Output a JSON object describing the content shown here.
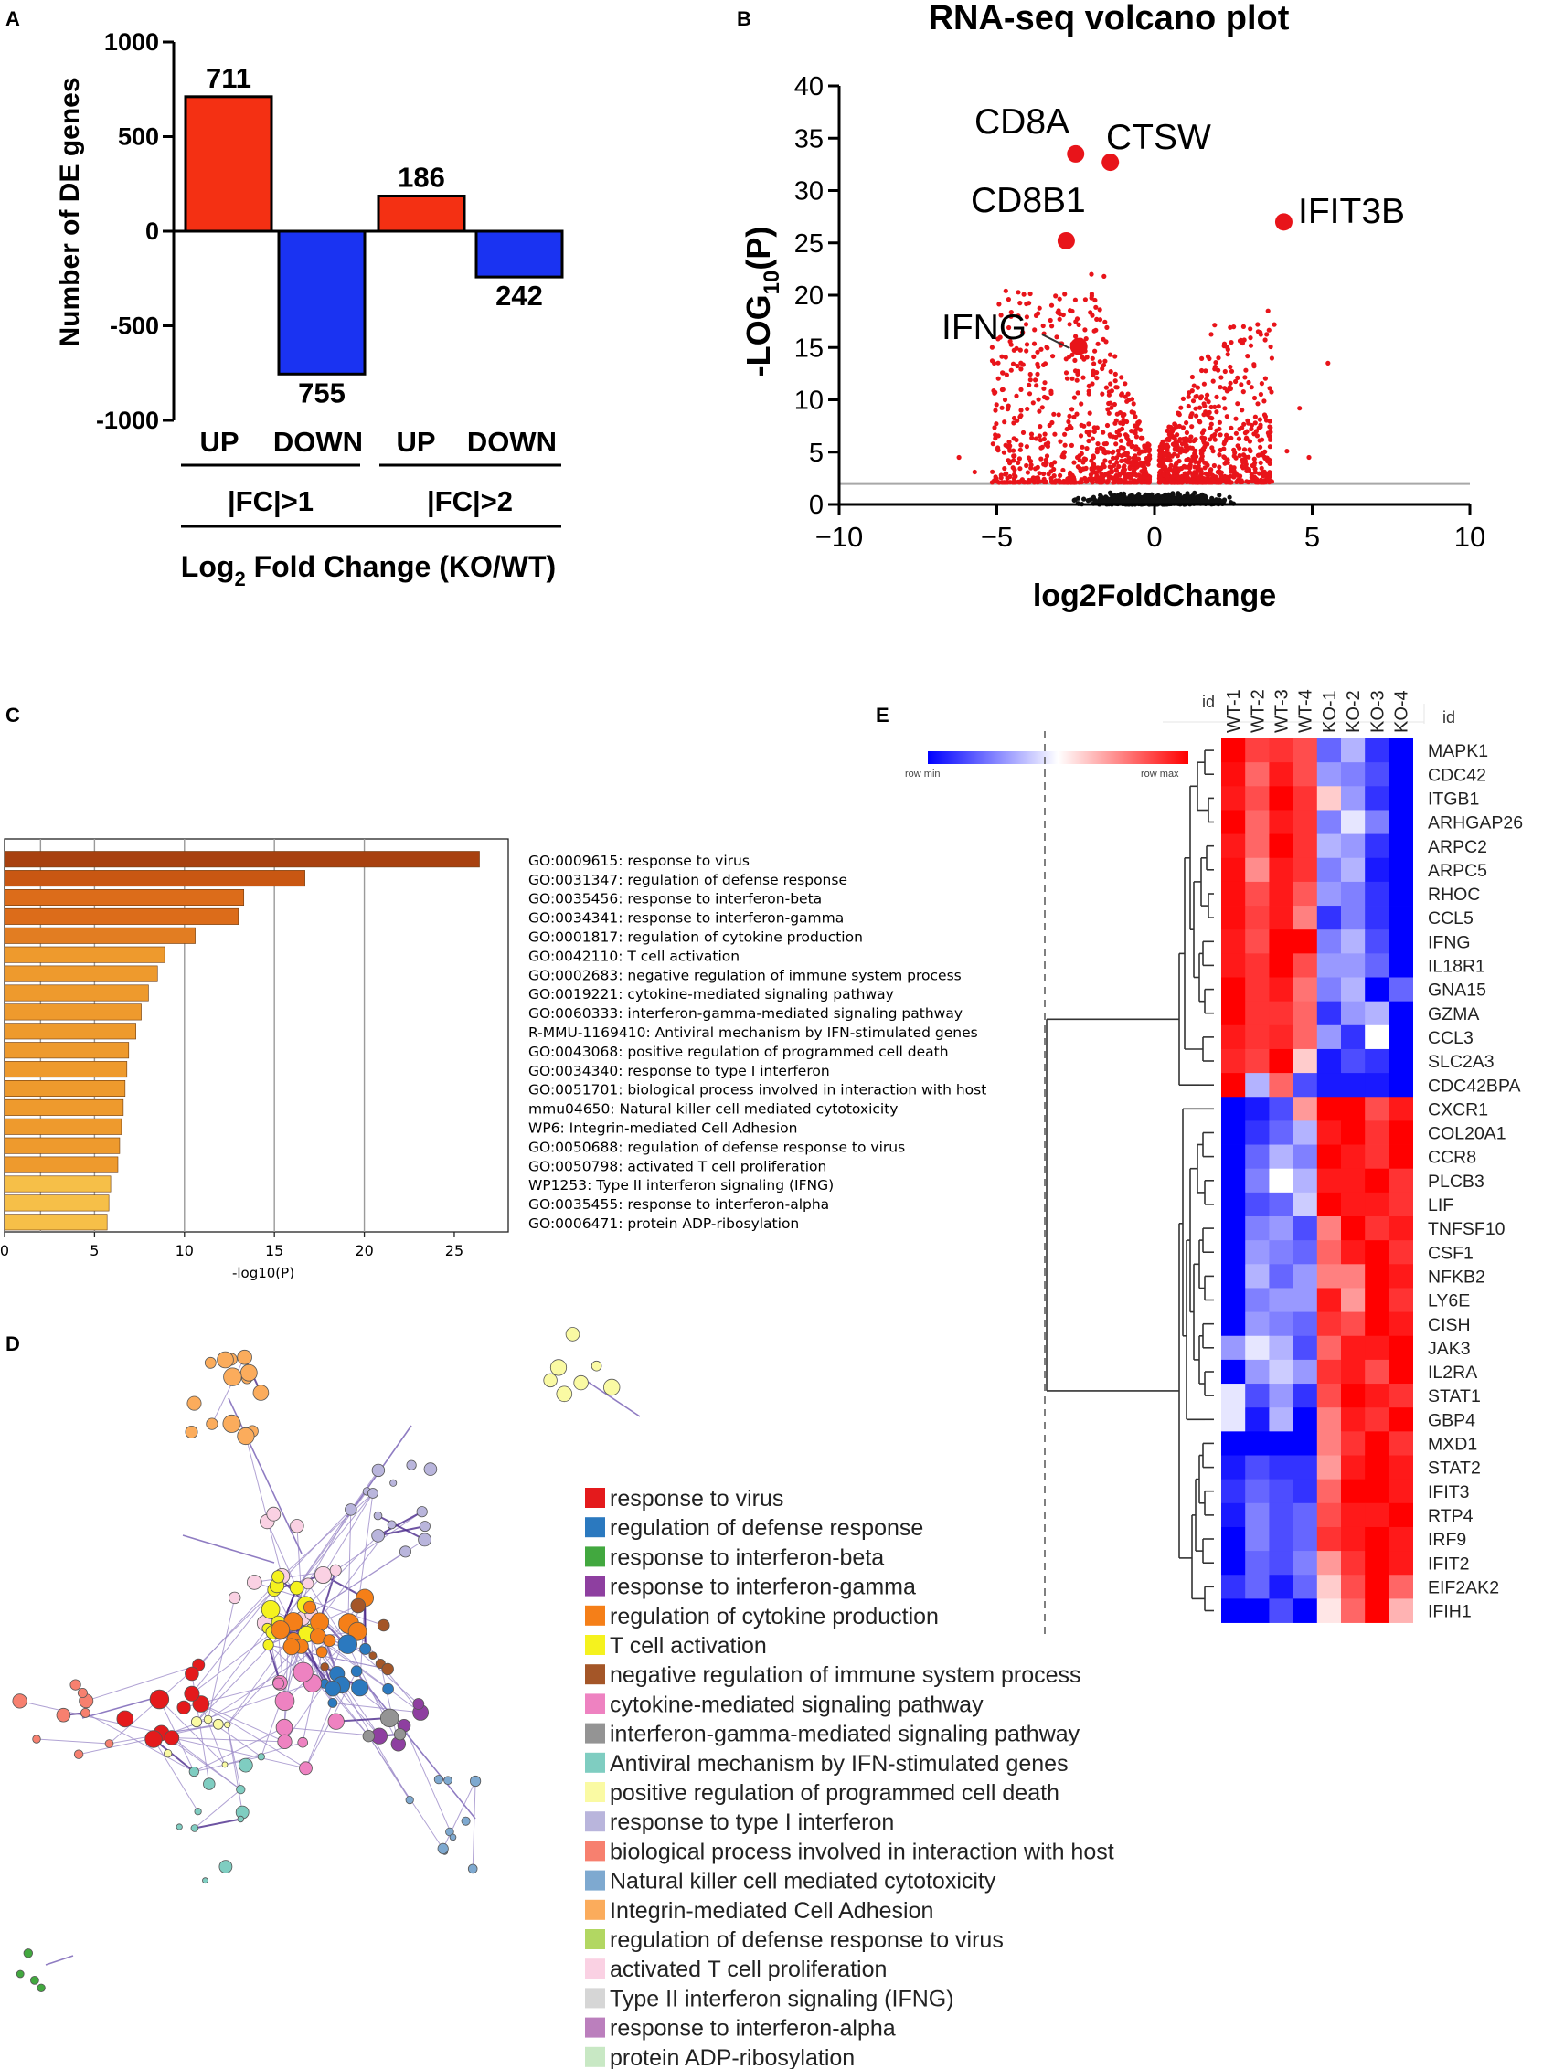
{
  "panels": {
    "a": "A",
    "b": "B",
    "c": "C",
    "d": "D",
    "e": "E"
  },
  "chart_data": [
    {
      "panel": "A",
      "type": "bar",
      "ylabel": "Number of DE genes",
      "xlabel_pre": "Log",
      "xlabel_sub": "2",
      "xlabel_post": " Fold Change (KO/WT)",
      "ylim": [
        -1000,
        1000
      ],
      "yticks": [
        1000,
        500,
        0,
        -500,
        -1000
      ],
      "categories": [
        "UP",
        "DOWN",
        "UP",
        "DOWN"
      ],
      "groups": [
        "|FC|>1",
        "|FC|>2"
      ],
      "values": [
        711,
        -755,
        186,
        -242
      ],
      "labels": [
        "711",
        "755",
        "186",
        "242"
      ],
      "colors": [
        "#f43013",
        "#1a33f2",
        "#f43013",
        "#1a33f2"
      ]
    },
    {
      "panel": "B",
      "type": "scatter",
      "title": "RNA-seq volcano plot",
      "xlabel": "log2FoldChange",
      "ylabel_pre": "-LOG",
      "ylabel_sub": "10",
      "ylabel_post": "(P)",
      "xlim": [
        -10,
        10
      ],
      "ylim": [
        0,
        40
      ],
      "xticks": [
        -10,
        -5,
        0,
        5,
        10
      ],
      "yticks": [
        0,
        5,
        10,
        15,
        20,
        25,
        30,
        35,
        40
      ],
      "threshold": 2,
      "highlights": [
        {
          "name": "CD8A",
          "x": -2.5,
          "y": 33.5
        },
        {
          "name": "CTSW",
          "x": -1.4,
          "y": 32.7
        },
        {
          "name": "CD8B1",
          "x": -2.8,
          "y": 25.2
        },
        {
          "name": "IFIT3B",
          "x": 4.1,
          "y": 27.0
        },
        {
          "name": "IFNG",
          "x": -2.4,
          "y": 15.1
        }
      ],
      "point_color": "#e8141a",
      "ns_color": "#111111"
    },
    {
      "panel": "C",
      "type": "bar",
      "orientation": "horizontal",
      "xlabel": "-log10(P)",
      "xlim": [
        0,
        28
      ],
      "xticks": [
        0,
        5,
        10,
        15,
        20,
        25
      ],
      "terms": [
        "GO:0009615: response to virus",
        "GO:0031347: regulation of defense response",
        "GO:0035456: response to interferon-beta",
        "GO:0034341: response to interferon-gamma",
        "GO:0001817: regulation of cytokine production",
        "GO:0042110: T cell activation",
        "GO:0002683: negative regulation of immune system process",
        "GO:0019221: cytokine-mediated signaling pathway",
        "GO:0060333: interferon-gamma-mediated signaling pathway",
        "R-MMU-1169410: Antiviral mechanism by IFN-stimulated genes",
        "GO:0043068: positive regulation of programmed cell death",
        "GO:0034340: response to type I interferon",
        "GO:0051701: biological process involved in interaction with host",
        "mmu04650: Natural killer cell mediated cytotoxicity",
        "WP6: Integrin-mediated Cell Adhesion",
        "GO:0050688: regulation of defense response to virus",
        "GO:0050798: activated T cell proliferation",
        "WP1253: Type II interferon signaling (IFNG)",
        "GO:0035455: response to interferon-alpha",
        "GO:0006471: protein ADP-ribosylation"
      ],
      "values": [
        26.4,
        16.7,
        13.3,
        13.0,
        10.6,
        8.9,
        8.5,
        8.0,
        7.6,
        7.3,
        6.9,
        6.8,
        6.7,
        6.6,
        6.5,
        6.4,
        6.3,
        5.9,
        5.8,
        5.7
      ],
      "colors": [
        "#a8410f",
        "#c95712",
        "#dc6c1a",
        "#dc6c1a",
        "#e27d22",
        "#ee9a2d",
        "#ee9a2d",
        "#ee9a2d",
        "#ee9a2d",
        "#ee9a2d",
        "#ee9a2d",
        "#ee9a2d",
        "#ee9a2d",
        "#ee9a2d",
        "#ee9a2d",
        "#ee9a2d",
        "#ee9a2d",
        "#f6bf48",
        "#f6bf48",
        "#f6bf48"
      ]
    },
    {
      "panel": "D",
      "type": "network",
      "legend": [
        {
          "label": "response to virus",
          "color": "#e41a1c"
        },
        {
          "label": "regulation of defense response",
          "color": "#2b79bf"
        },
        {
          "label": "response to interferon-beta",
          "color": "#42a83f"
        },
        {
          "label": "response to interferon-gamma",
          "color": "#8e3fa0"
        },
        {
          "label": "regulation of cytokine production",
          "color": "#f57f18"
        },
        {
          "label": "T cell activation",
          "color": "#f5f21e"
        },
        {
          "label": "negative regulation of immune system process",
          "color": "#a45628"
        },
        {
          "label": "cytokine-mediated signaling pathway",
          "color": "#ee82c1"
        },
        {
          "label": "interferon-gamma-mediated signaling pathway",
          "color": "#949494"
        },
        {
          "label": "Antiviral mechanism by IFN-stimulated genes",
          "color": "#7fcdc1"
        },
        {
          "label": "positive regulation of programmed cell death",
          "color": "#fafaa3"
        },
        {
          "label": "response to type I interferon",
          "color": "#b9b5dc"
        },
        {
          "label": "biological process involved in interaction with host",
          "color": "#f7806f"
        },
        {
          "label": "Natural killer cell mediated cytotoxicity",
          "color": "#7ea9d0"
        },
        {
          "label": "Integrin-mediated Cell Adhesion",
          "color": "#fbac5c"
        },
        {
          "label": "regulation of defense response to virus",
          "color": "#b2d762"
        },
        {
          "label": "activated T cell proliferation",
          "color": "#fad1e3"
        },
        {
          "label": "Type II interferon signaling (IFNG)",
          "color": "#d6d6d6"
        },
        {
          "label": "response to interferon-alpha",
          "color": "#bb7fbd"
        },
        {
          "label": "protein ADP-ribosylation",
          "color": "#c8e8c4"
        }
      ]
    },
    {
      "panel": "E",
      "type": "heatmap",
      "id_label": "id",
      "legend_min": "row min",
      "legend_max": "row max",
      "columns": [
        "WT-1",
        "WT-2",
        "WT-3",
        "WT-4",
        "KO-1",
        "KO-2",
        "KO-3",
        "KO-4"
      ],
      "rows": [
        "MAPK1",
        "CDC42",
        "ITGB1",
        "ARHGAP26",
        "ARPC2",
        "ARPC5",
        "RHOC",
        "CCL5",
        "IFNG",
        "IL18R1",
        "GNA15",
        "GZMA",
        "CCL3",
        "SLC2A3",
        "CDC42BPA",
        "CXCR1",
        "COL20A1",
        "CCR8",
        "PLCB3",
        "LIF",
        "TNFSF10",
        "CSF1",
        "NFKB2",
        "LY6E",
        "CISH",
        "JAK3",
        "IL2RA",
        "STAT1",
        "GBP4",
        "MXD1",
        "STAT2",
        "IFIT3",
        "RTP4",
        "IRF9",
        "IFIT2",
        "EIF2AK2",
        "IFIH1"
      ],
      "values": [
        [
          1.0,
          0.75,
          0.8,
          0.7,
          -0.6,
          -0.3,
          -0.8,
          -1.0
        ],
        [
          0.95,
          0.6,
          0.9,
          0.7,
          -0.4,
          -0.5,
          -0.7,
          -1.0
        ],
        [
          0.9,
          0.7,
          1.0,
          0.8,
          0.2,
          -0.4,
          -0.8,
          -1.0
        ],
        [
          1.0,
          0.6,
          0.9,
          0.8,
          -0.5,
          -0.1,
          -0.5,
          -1.0
        ],
        [
          0.9,
          0.6,
          1.0,
          0.8,
          -0.3,
          -0.4,
          -0.8,
          -1.0
        ],
        [
          0.95,
          0.45,
          0.9,
          0.8,
          -0.5,
          -0.3,
          -0.9,
          -1.0
        ],
        [
          0.95,
          0.7,
          0.9,
          0.65,
          -0.4,
          -0.5,
          -0.8,
          -1.0
        ],
        [
          0.95,
          0.75,
          0.9,
          0.5,
          -0.8,
          -0.5,
          -0.8,
          -1.0
        ],
        [
          0.9,
          0.7,
          1.0,
          1.0,
          -0.5,
          -0.3,
          -0.7,
          -1.0
        ],
        [
          0.9,
          0.8,
          1.0,
          0.7,
          -0.4,
          -0.4,
          -0.6,
          -1.0
        ],
        [
          1.0,
          0.8,
          0.9,
          0.55,
          -0.5,
          -0.3,
          -1.0,
          -0.6
        ],
        [
          1.0,
          0.8,
          0.8,
          0.6,
          -0.8,
          -0.4,
          -0.3,
          -1.0
        ],
        [
          0.9,
          0.8,
          0.85,
          0.6,
          -0.4,
          -0.8,
          0.0,
          -1.0
        ],
        [
          0.85,
          0.75,
          1.0,
          0.2,
          -0.9,
          -0.7,
          -0.8,
          -1.0
        ],
        [
          1.0,
          -0.3,
          0.6,
          -0.7,
          -0.9,
          -0.9,
          -0.9,
          -1.0
        ],
        [
          -1.0,
          -0.9,
          -0.7,
          0.4,
          1.0,
          1.0,
          0.7,
          0.9
        ],
        [
          -1.0,
          -0.8,
          -0.6,
          -0.3,
          0.9,
          1.0,
          0.8,
          1.0
        ],
        [
          -1.0,
          -0.6,
          -0.3,
          -0.5,
          1.0,
          0.9,
          0.8,
          1.0
        ],
        [
          -1.0,
          -0.5,
          0.0,
          -0.3,
          0.9,
          0.9,
          1.0,
          0.8
        ],
        [
          -1.0,
          -0.7,
          -0.6,
          -0.2,
          1.0,
          0.9,
          0.9,
          0.8
        ],
        [
          -1.0,
          -0.5,
          -0.4,
          -0.7,
          0.5,
          1.0,
          0.8,
          0.9
        ],
        [
          -1.0,
          -0.4,
          -0.5,
          -0.6,
          0.6,
          0.9,
          1.0,
          0.8
        ],
        [
          -1.0,
          -0.3,
          -0.6,
          -0.4,
          0.5,
          0.5,
          1.0,
          0.9
        ],
        [
          -1.0,
          -0.5,
          -0.4,
          -0.4,
          0.9,
          0.4,
          1.0,
          0.8
        ],
        [
          -1.0,
          -0.4,
          -0.5,
          -0.6,
          0.8,
          0.7,
          1.0,
          0.9
        ],
        [
          -0.4,
          -0.1,
          -0.3,
          -0.7,
          0.6,
          0.9,
          0.9,
          1.0
        ],
        [
          -1.0,
          -0.4,
          -0.2,
          -0.4,
          0.8,
          0.9,
          0.7,
          1.0
        ],
        [
          -0.1,
          -0.7,
          -0.4,
          -0.8,
          0.7,
          1.0,
          0.9,
          0.8
        ],
        [
          -0.1,
          -0.9,
          -0.3,
          -1.0,
          0.5,
          0.9,
          0.8,
          1.0
        ],
        [
          -1.0,
          -1.0,
          -1.0,
          -1.0,
          0.5,
          0.8,
          1.0,
          0.8
        ],
        [
          -0.9,
          -0.7,
          -0.8,
          -0.8,
          0.4,
          0.9,
          1.0,
          0.9
        ],
        [
          -0.8,
          -0.6,
          -0.7,
          -0.8,
          0.6,
          1.0,
          1.0,
          0.9
        ],
        [
          -0.9,
          -0.5,
          -0.7,
          -0.6,
          0.7,
          0.9,
          0.9,
          1.0
        ],
        [
          -1.0,
          -0.5,
          -0.7,
          -0.6,
          0.8,
          0.9,
          1.0,
          0.9
        ],
        [
          -1.0,
          -0.6,
          -0.7,
          -0.5,
          0.4,
          0.8,
          1.0,
          0.9
        ],
        [
          -0.8,
          -0.6,
          -0.9,
          -0.6,
          0.2,
          0.7,
          1.0,
          0.6
        ],
        [
          -1.0,
          -1.0,
          -0.7,
          -1.0,
          0.1,
          0.6,
          1.0,
          0.3
        ]
      ]
    }
  ]
}
